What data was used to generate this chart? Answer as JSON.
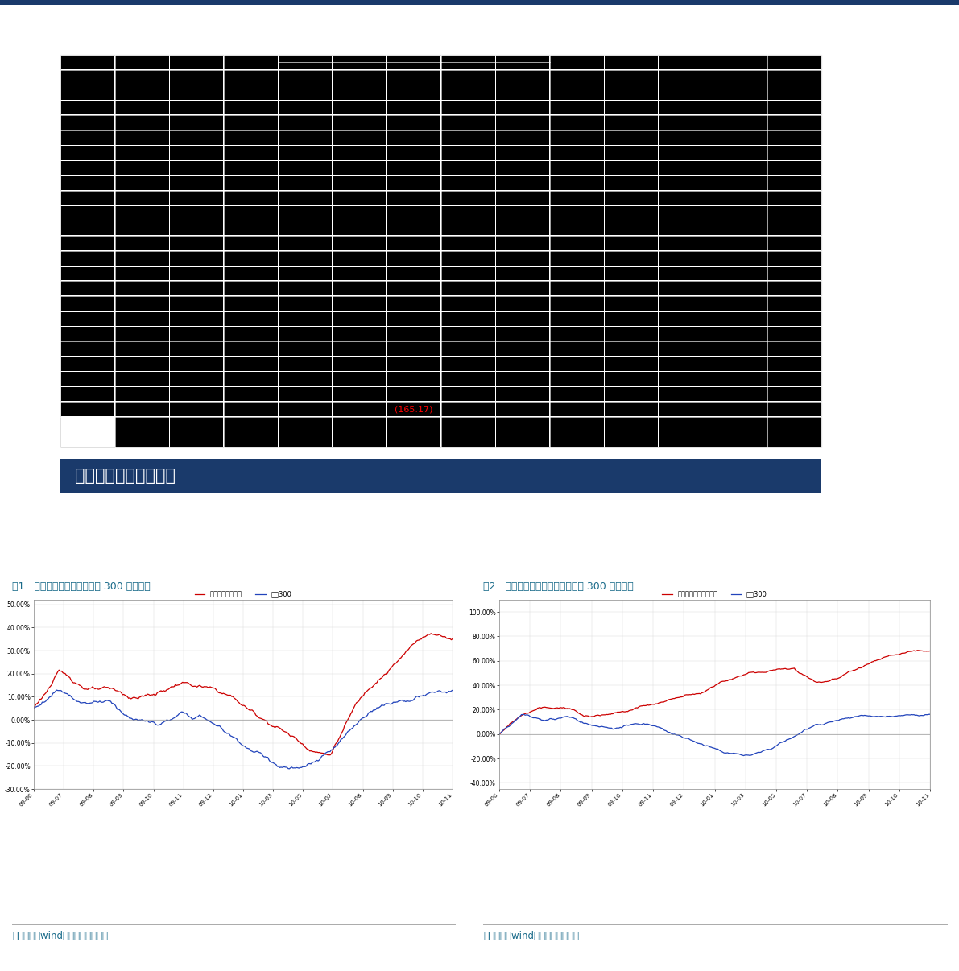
{
  "page_bg": "#ffffff",
  "top_bar_color": "#1a3a6b",
  "section_header_text": "主题研究行业最新信息",
  "section_header_bg": "#1a3a6b",
  "section_header_text_color": "#ffffff",
  "table_cell_bg": "#000000",
  "table_border_color": "#ffffff",
  "table_outer_border": "#aaaaaa",
  "table_rows": 26,
  "table_cols": 14,
  "annotation_text": "(165.17)",
  "annotation_color": "#ff0000",
  "fig1_title": "图1   轨道交通行业指数与沪深 300 指数比较",
  "fig2_title": "图2   轨道交通重点公司指数与沪深 300 指数比较",
  "fig_title_color": "#1a6b8a",
  "fig1_legend1": "轨道交通行业指数",
  "fig1_legend2": "沪深300",
  "fig2_legend1": "轨道交通重点公司指数",
  "fig2_legend2": "沪深300",
  "line_red": "#cc0000",
  "line_blue": "#2244bb",
  "chart_bg": "#ffffff",
  "footer_text1": "资料来源：wind，国海证券研究所",
  "footer_text2": "资料来源：wind，国海证券研究所",
  "footer_color": "#1a6b8a",
  "divider_color": "#aaaaaa",
  "yticks1_labels": [
    "50.00%",
    "40.00%",
    "30.00%",
    "20.00%",
    "10.00%",
    "0.00%",
    "-10.00%",
    "-20.00%",
    "-30.00%"
  ],
  "yticks2_labels": [
    "100.00%",
    "80.00%",
    "60.00%",
    "40.00%",
    "20.00%",
    "0.00%",
    "-20.00%",
    "-40.00%"
  ],
  "xlabel_dates1": [
    "09-06",
    "09-07",
    "09-08",
    "09-09",
    "09-10",
    "09-11",
    "09-12",
    "10-01",
    "10-03",
    "10-05",
    "10-07",
    "10-08",
    "10-09",
    "10-10",
    "10-11"
  ],
  "xlabel_dates2": [
    "09-06",
    "09-07",
    "09-08",
    "09-09",
    "09-10",
    "09-11",
    "09-12",
    "10-01",
    "10-03",
    "10-05",
    "10-07",
    "10-08",
    "10-09",
    "10-10",
    "10-11"
  ]
}
